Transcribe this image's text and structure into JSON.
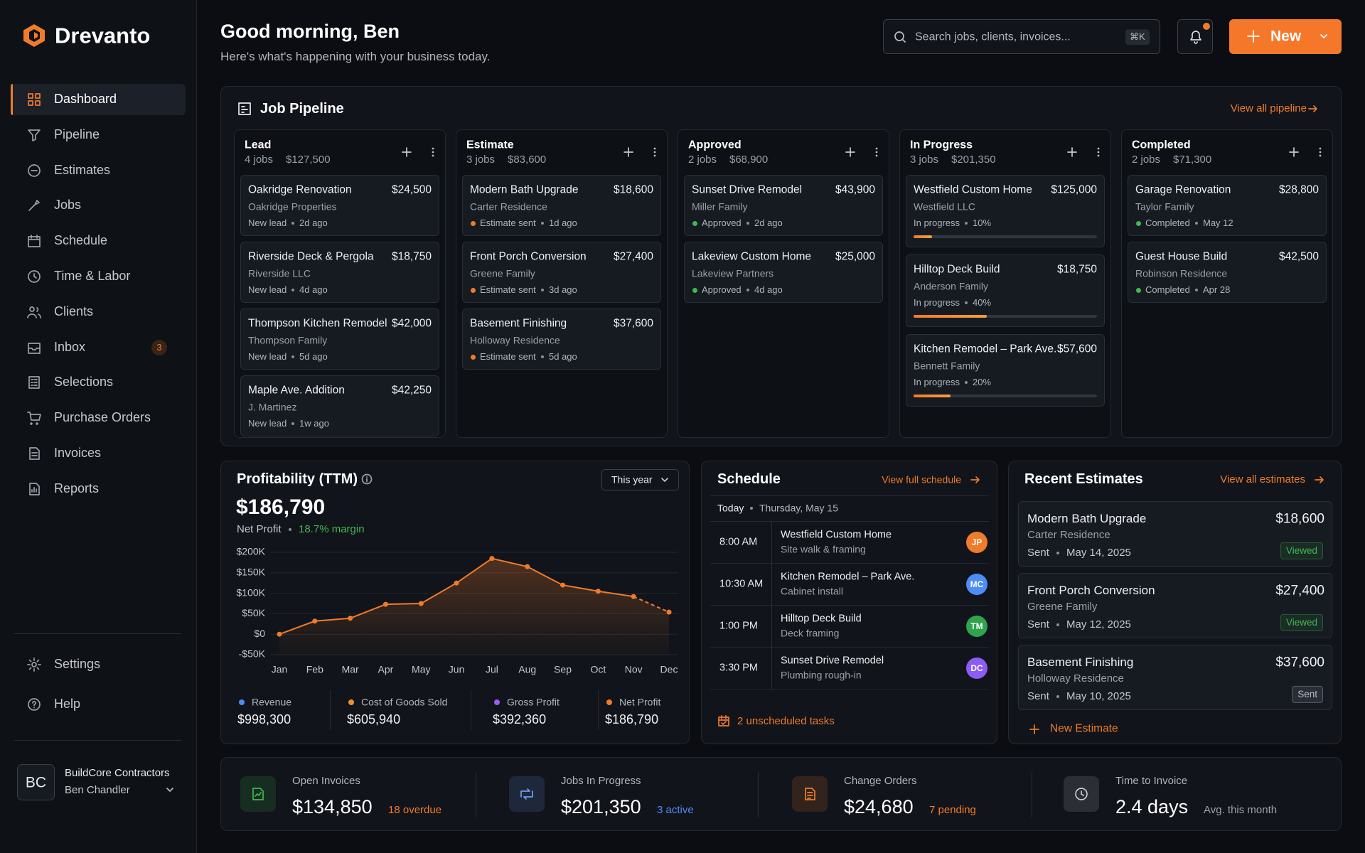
{
  "sidebar": {
    "brand": "Drevanto",
    "nav": [
      {
        "label": "Dashboard",
        "active": true
      },
      {
        "label": "Pipeline"
      },
      {
        "label": "Estimates"
      },
      {
        "label": "Jobs"
      },
      {
        "label": "Schedule"
      },
      {
        "label": "Time & Labor"
      },
      {
        "label": "Clients"
      },
      {
        "label": "Inbox",
        "badge": "3"
      },
      {
        "label": "Selections"
      },
      {
        "label": "Purchase Orders"
      },
      {
        "label": "Invoices"
      },
      {
        "label": "Reports"
      }
    ],
    "footer_nav": [
      "Settings",
      "Help"
    ],
    "account": {
      "initials": "BC",
      "company": "BuildCore Contractors",
      "user": "Ben Chandler"
    }
  },
  "header": {
    "greeting": "Good morning, Ben",
    "subtitle": "Here's what's happening with your business today.",
    "search_placeholder": "Search jobs, clients, invoices...",
    "shortcut": "⌘K",
    "new_button": "New"
  },
  "pipeline": {
    "title": "Job Pipeline",
    "link": "View all pipeline",
    "columns": [
      {
        "name": "Lead",
        "count": "4 jobs",
        "total": "$127,500",
        "cards": [
          {
            "title": "Oakridge Renovation",
            "amount": "$24,500",
            "client": "Oakridge Properties",
            "status": "New lead",
            "age": "2d ago"
          },
          {
            "title": "Riverside Deck & Pergola",
            "amount": "$18,750",
            "client": "Riverside LLC",
            "status": "New lead",
            "age": "4d ago"
          },
          {
            "title": "Thompson Kitchen Remodel",
            "amount": "$42,000",
            "client": "Thompson Family",
            "status": "New lead",
            "age": "5d ago"
          },
          {
            "title": "Maple Ave. Addition",
            "amount": "$42,250",
            "client": "J. Martinez",
            "status": "New lead",
            "age": "1w ago"
          }
        ]
      },
      {
        "name": "Estimate",
        "count": "3 jobs",
        "total": "$83,600",
        "status_dot": "#f07b2a",
        "cards": [
          {
            "title": "Modern Bath Upgrade",
            "amount": "$18,600",
            "client": "Carter Residence",
            "status": "Estimate sent",
            "age": "1d ago"
          },
          {
            "title": "Front Porch Conversion",
            "amount": "$27,400",
            "client": "Greene Family",
            "status": "Estimate sent",
            "age": "3d ago"
          },
          {
            "title": "Basement Finishing",
            "amount": "$37,600",
            "client": "Holloway Residence",
            "status": "Estimate sent",
            "age": "5d ago"
          }
        ]
      },
      {
        "name": "Approved",
        "count": "2 jobs",
        "total": "$68,900",
        "status_dot": "#3fb950",
        "cards": [
          {
            "title": "Sunset Drive Remodel",
            "amount": "$43,900",
            "client": "Miller Family",
            "status": "Approved",
            "age": "2d ago"
          },
          {
            "title": "Lakeview Custom Home",
            "amount": "$25,000",
            "client": "Lakeview Partners",
            "status": "Approved",
            "age": "4d ago"
          }
        ]
      },
      {
        "name": "In Progress",
        "count": "3 jobs",
        "total": "$201,350",
        "cards": [
          {
            "title": "Westfield Custom Home",
            "amount": "$125,000",
            "client": "Westfield LLC",
            "status": "In progress",
            "progress": {
              "value": 10,
              "label": "10%"
            }
          },
          {
            "title": "Hilltop Deck Build",
            "amount": "$18,750",
            "client": "Anderson Family",
            "status": "In progress",
            "progress": {
              "value": 40,
              "label": "40%"
            }
          },
          {
            "title": "Kitchen Remodel – Park Ave.",
            "amount": "$57,600",
            "client": "Bennett Family",
            "status": "In progress",
            "progress": {
              "value": 20,
              "label": "20%"
            }
          }
        ]
      },
      {
        "name": "Completed",
        "count": "2 jobs",
        "total": "$71,300",
        "status_dot": "#3fb950",
        "cards": [
          {
            "title": "Garage Renovation",
            "amount": "$28,800",
            "client": "Taylor Family",
            "status": "Completed",
            "age": "May 12"
          },
          {
            "title": "Guest House Build",
            "amount": "$42,500",
            "client": "Robinson Residence",
            "status": "Completed",
            "age": "Apr 28"
          }
        ]
      }
    ]
  },
  "profitability": {
    "title": "Profitability (TTM)",
    "period": "This year",
    "amount": "$186,790",
    "amount_label": "Net Profit",
    "margin": "18.7% margin"
  },
  "chart_data": {
    "type": "line",
    "categories": [
      "Jan",
      "Feb",
      "Mar",
      "Apr",
      "May",
      "Jun",
      "Jul",
      "Aug",
      "Sep",
      "Oct",
      "Nov",
      "Dec"
    ],
    "values": [
      0,
      32000,
      39000,
      73000,
      75000,
      125000,
      185000,
      165000,
      120000,
      105000,
      92000,
      54000
    ],
    "color": "#f07b2a",
    "dashed_last": true,
    "ylim": [
      -50000,
      200000
    ],
    "yticks": [
      {
        "value": 200000,
        "label": "$200K"
      },
      {
        "value": 150000,
        "label": "$150K"
      },
      {
        "value": 100000,
        "label": "$100K"
      },
      {
        "value": 50000,
        "label": "$50K"
      },
      {
        "value": 0,
        "label": "$0"
      },
      {
        "value": -50000,
        "label": "-$50K"
      }
    ],
    "grid": true,
    "legend": [
      {
        "name": "Revenue",
        "color": "#4c8df6",
        "total": "$998,300"
      },
      {
        "name": "Cost of Goods Sold",
        "color": "#f0902a",
        "total": "$605,940"
      },
      {
        "name": "Gross Profit",
        "color": "#9b5cf0",
        "total": "$392,360"
      },
      {
        "name": "Net Profit",
        "color": "#f07b2a",
        "total": "$186,790"
      }
    ]
  },
  "schedule": {
    "title": "Schedule",
    "link": "View full schedule",
    "day_label": "Today",
    "date": "Thursday, May 15",
    "items": [
      {
        "time": "8:00 AM",
        "title": "Westfield Custom Home",
        "task": "Site walk & framing",
        "initials": "JP",
        "color": "#f07b2a"
      },
      {
        "time": "10:30 AM",
        "title": "Kitchen Remodel – Park Ave.",
        "task": "Cabinet install",
        "initials": "MC",
        "color": "#4c8df6"
      },
      {
        "time": "1:00 PM",
        "title": "Hilltop Deck Build",
        "task": "Deck framing",
        "initials": "TM",
        "color": "#2ea44f"
      },
      {
        "time": "3:30 PM",
        "title": "Sunset Drive Remodel",
        "task": "Plumbing rough-in",
        "initials": "DC",
        "color": "#8b5cf6"
      }
    ],
    "unscheduled": "2 unscheduled tasks"
  },
  "recent_estimates": {
    "title": "Recent Estimates",
    "link": "View all estimates",
    "items": [
      {
        "title": "Modern Bath Upgrade",
        "client": "Carter Residence",
        "amount": "$18,600",
        "status": "Sent",
        "date": "May 14, 2025",
        "badge": "Viewed",
        "badge_color": "#3fb950"
      },
      {
        "title": "Front Porch Conversion",
        "client": "Greene Family",
        "amount": "$27,400",
        "status": "Sent",
        "date": "May 12, 2025",
        "badge": "Viewed",
        "badge_color": "#3fb950"
      },
      {
        "title": "Basement Finishing",
        "client": "Holloway Residence",
        "amount": "$37,600",
        "status": "Sent",
        "date": "May 10, 2025",
        "badge": "Sent",
        "badge_color": "#b8bdc6"
      }
    ],
    "new_button": "New Estimate"
  },
  "kpis": [
    {
      "label": "Open Invoices",
      "value": "$134,850",
      "note": "18 overdue",
      "note_color": "#f07b2a",
      "icon_color": "#3fb950"
    },
    {
      "label": "Jobs In Progress",
      "value": "$201,350",
      "note": "3 active",
      "note_color": "#4c8df6",
      "icon_color": "#6f9cf2"
    },
    {
      "label": "Change Orders",
      "value": "$24,680",
      "note": "7 pending",
      "note_color": "#f07b2a",
      "icon_color": "#f07b2a"
    },
    {
      "label": "Time to Invoice",
      "value": "2.4 days",
      "note": "Avg. this month",
      "note_color": "#9aa0aa",
      "icon_color": "#c4c8cf"
    }
  ]
}
